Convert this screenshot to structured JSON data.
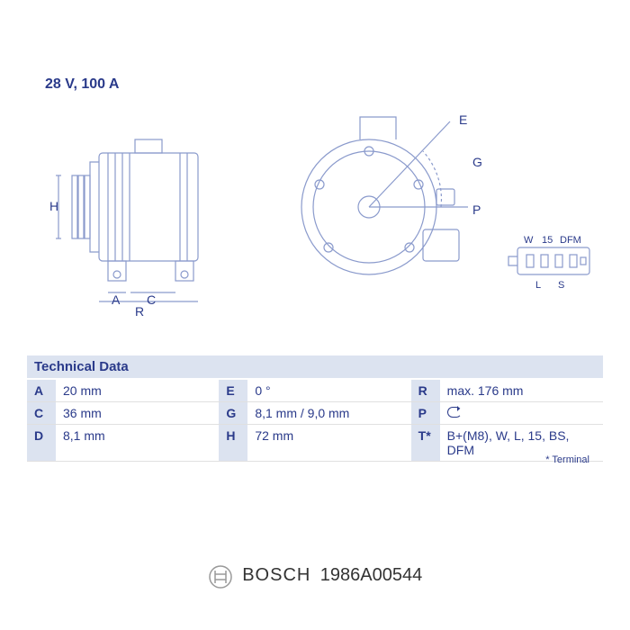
{
  "spec_text": "28 V, 100 A",
  "tech_header": "Technical Data",
  "footnote": "* Terminal",
  "brand": "BOSCH",
  "part_number": "1986A00544",
  "table": {
    "rows": [
      {
        "l1": "A",
        "v1": "20 mm",
        "l2": "E",
        "v2": "0 °",
        "l3": "R",
        "v3": "max. 176 mm"
      },
      {
        "l1": "C",
        "v1": "36 mm",
        "l2": "G",
        "v2": "8,1 mm / 9,0 mm",
        "l3": "P",
        "v3": "__ROT__"
      },
      {
        "l1": "D",
        "v1": "8,1 mm",
        "l2": "H",
        "v2": "72 mm",
        "l3": "T*",
        "v3": "B+(M8), W, L, 15, BS, DFM"
      }
    ]
  },
  "diagrams": {
    "stroke": "#8a9acc",
    "label_color": "#2a3a8a",
    "side": {
      "dims": [
        "H",
        "A",
        "C",
        "R"
      ]
    },
    "rear": {
      "dims": [
        "E",
        "G",
        "P"
      ]
    },
    "connector": {
      "top_labels": [
        "W",
        "15",
        "DFM"
      ],
      "bottom_labels": [
        "L",
        "S"
      ]
    }
  }
}
